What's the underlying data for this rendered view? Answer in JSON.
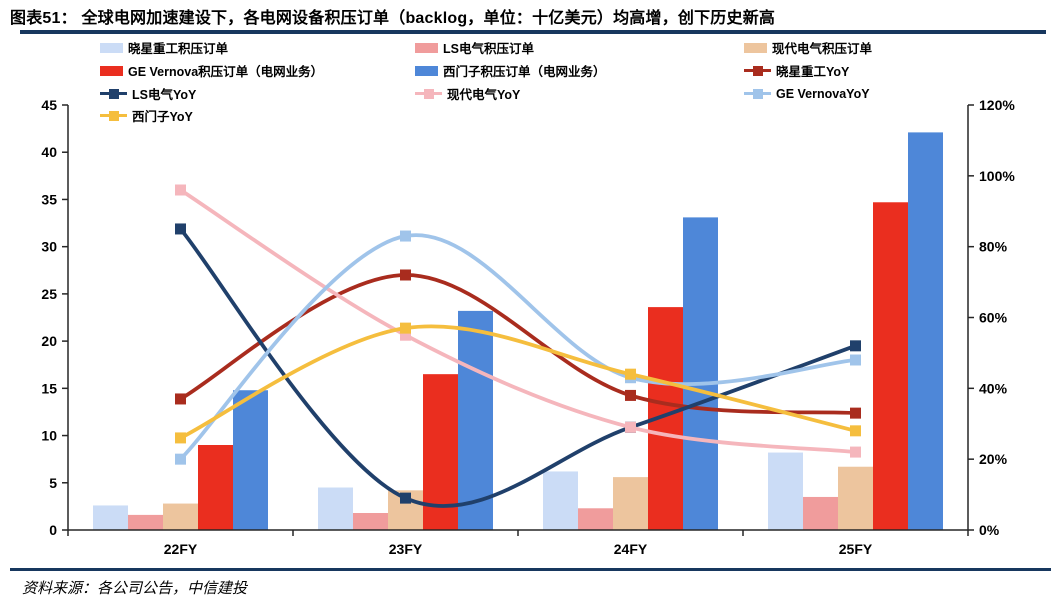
{
  "header": {
    "title": "图表51：  全球电网加速建设下，各电网设备积压订单（backlog，单位：十亿美元）均高增，创下历史新高"
  },
  "footer": {
    "source": "资料来源：各公司公告，中信建投"
  },
  "colors": {
    "rule_navy": "#17375E",
    "axis": "#262626"
  },
  "chart_data": {
    "type": "bar+line",
    "categories": [
      "22FY",
      "23FY",
      "24FY",
      "25FY"
    ],
    "bar_series": [
      {
        "name": "晓星重工积压订单",
        "color": "#CBDCF6",
        "values": [
          2.6,
          4.5,
          6.2,
          8.2
        ]
      },
      {
        "name": "LS电气积压订单",
        "color": "#F09C9C",
        "values": [
          1.6,
          1.8,
          2.3,
          3.5
        ]
      },
      {
        "name": "现代电气积压订单",
        "color": "#EDC59E",
        "values": [
          2.8,
          4.2,
          5.6,
          6.7
        ]
      },
      {
        "name": "GE Vernova积压订单（电网业务）",
        "color": "#EA2E1F",
        "values": [
          9.0,
          16.5,
          23.6,
          34.7
        ]
      },
      {
        "name": "西门子积压订单（电网业务）",
        "color": "#4E87D8",
        "values": [
          14.8,
          23.2,
          33.1,
          42.1
        ]
      }
    ],
    "line_series": [
      {
        "name": "晓星重工YoY",
        "color": "#A92C1E",
        "values": [
          37,
          72,
          38,
          33
        ]
      },
      {
        "name": "LS电气YoY",
        "color": "#20406B",
        "values": [
          85,
          9,
          29,
          52
        ]
      },
      {
        "name": "现代电气YoY",
        "color": "#F5B6BC",
        "values": [
          96,
          55,
          29,
          22
        ]
      },
      {
        "name": "GE VernovaYoY",
        "color": "#A0C4EA",
        "values": [
          20,
          83,
          43,
          48
        ]
      },
      {
        "name": "西门子YoY",
        "color": "#F5BE3E",
        "values": [
          26,
          57,
          44,
          28
        ]
      }
    ],
    "left_axis": {
      "min": 0,
      "max": 45,
      "step": 5
    },
    "right_axis": {
      "min": 0,
      "max": 120,
      "step": 20,
      "suffix": "%"
    },
    "grid": false,
    "legend_position": "top"
  }
}
